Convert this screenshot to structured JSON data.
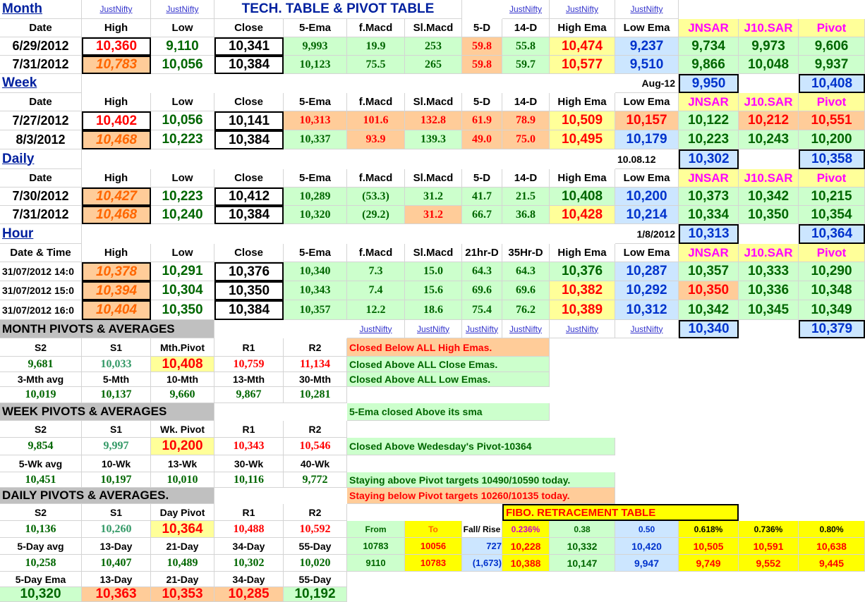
{
  "colors": {
    "green": "#ccffcc",
    "orange": "#ffcc99",
    "yellow": "#ffff99",
    "blue": "#cce6ff",
    "brightyellow": "#ffff00",
    "grey": "#c0c0c0",
    "purple": "#cc99ff",
    "red_text": "#ff0000",
    "green_text": "#006600",
    "blue_text": "#0033cc",
    "magenta_text": "#ff00ff",
    "orange_text": "#ff6600"
  },
  "title": "TECH. TABLE   &  PIVOT TABLE",
  "link_text": "JustNifty",
  "hdr": {
    "date": "Date",
    "high": "High",
    "low": "Low",
    "close": "Close",
    "ema5": "5-Ema",
    "fmacd": "f.Macd",
    "slmacd": "Sl.Macd",
    "d5": "5-D",
    "d14": "14-D",
    "hiema": "High Ema",
    "loema": "Low Ema",
    "jnsar": "JNSAR",
    "j10": "J10.SAR",
    "pivot": "Pivot",
    "datetime": "Date & Time",
    "hr21": "21hr-D",
    "hr35": "35Hr-D"
  },
  "sections": {
    "month": "Month",
    "week": "Week",
    "daily": "Daily",
    "hour": "Hour"
  },
  "month_rows": [
    [
      "6/29/2012",
      "10,360",
      "9,110",
      "10,341",
      "9,993",
      "19.9",
      "253",
      "59.8",
      "55.8",
      "10,474",
      "9,237",
      "9,734",
      "9,973",
      "9,606"
    ],
    [
      "7/31/2012",
      "10,783",
      "10,056",
      "10,384",
      "10,123",
      "75.5",
      "265",
      "59.8",
      "59.7",
      "10,577",
      "9,510",
      "9,866",
      "10,048",
      "9,937"
    ]
  ],
  "month_next": {
    "label": "Aug-12",
    "jnsar": "9,950",
    "pivot": "10,408"
  },
  "week_rows": [
    [
      "7/27/2012",
      "10,402",
      "10,056",
      "10,141",
      "10,313",
      "101.6",
      "132.8",
      "61.9",
      "78.9",
      "10,509",
      "10,157",
      "10,122",
      "10,212",
      "10,551"
    ],
    [
      "8/3/2012",
      "10,468",
      "10,223",
      "10,384",
      "10,337",
      "93.9",
      "139.3",
      "49.0",
      "75.0",
      "10,495",
      "10,179",
      "10,223",
      "10,243",
      "10,200"
    ]
  ],
  "week_next": {
    "label": "10.08.12",
    "jnsar": "10,302",
    "pivot": "10,358"
  },
  "daily_rows": [
    [
      "7/30/2012",
      "10,427",
      "10,223",
      "10,412",
      "10,289",
      "(53.3)",
      "31.2",
      "41.7",
      "21.5",
      "10,408",
      "10,200",
      "10,373",
      "10,342",
      "10,215"
    ],
    [
      "7/31/2012",
      "10,468",
      "10,240",
      "10,384",
      "10,320",
      "(29.2)",
      "31.2",
      "66.7",
      "36.8",
      "10,428",
      "10,214",
      "10,334",
      "10,350",
      "10,354"
    ]
  ],
  "daily_next": {
    "label": "1/8/2012",
    "jnsar": "10,313",
    "pivot": "10,364"
  },
  "hour_rows": [
    [
      "31/07/2012 14:0",
      "10,378",
      "10,291",
      "10,376",
      "10,340",
      "7.3",
      "15.0",
      "64.3",
      "64.3",
      "10,376",
      "10,287",
      "10,357",
      "10,333",
      "10,290"
    ],
    [
      "31/07/2012 15:0",
      "10,394",
      "10,304",
      "10,350",
      "10,343",
      "7.4",
      "15.6",
      "69.6",
      "69.6",
      "10,382",
      "10,292",
      "10,350",
      "10,336",
      "10,348"
    ],
    [
      "31/07/2012 16:0",
      "10,404",
      "10,350",
      "10,384",
      "10,357",
      "12.2",
      "18.6",
      "75.4",
      "76.2",
      "10,389",
      "10,312",
      "10,342",
      "10,345",
      "10,349"
    ]
  ],
  "hour_next": {
    "jnsar": "10,340",
    "pivot": "10,379"
  },
  "month_pivots": {
    "title": "MONTH PIVOTS  &  AVERAGES",
    "head": [
      "S2",
      "S1",
      "Mth.Pivot",
      "R1",
      "R2"
    ],
    "vals": [
      "9,681",
      "10,033",
      "10,408",
      "10,759",
      "11,134"
    ],
    "avg_head": [
      "3-Mth avg",
      "5-Mth",
      "10-Mth",
      "13-Mth",
      "30-Mth"
    ],
    "avg_vals": [
      "10,019",
      "10,137",
      "9,660",
      "9,867",
      "10,281"
    ]
  },
  "week_pivots": {
    "title": "WEEK  PIVOTS  &  AVERAGES",
    "head": [
      "S2",
      "S1",
      "Wk. Pivot",
      "R1",
      "R2"
    ],
    "vals": [
      "9,854",
      "9,997",
      "10,200",
      "10,343",
      "10,546"
    ],
    "avg_head": [
      "5-Wk avg",
      "10-Wk",
      "13-Wk",
      "30-Wk",
      "40-Wk"
    ],
    "avg_vals": [
      "10,451",
      "10,197",
      "10,010",
      "10,116",
      "9,772"
    ]
  },
  "daily_pivots": {
    "title": "DAILY  PIVOTS  &  AVERAGES.",
    "head": [
      "S2",
      "S1",
      "Day  Pivot",
      "R1",
      "R2"
    ],
    "vals": [
      "10,136",
      "10,260",
      "10,364",
      "10,488",
      "10,592"
    ],
    "avg_head": [
      "5-Day avg",
      "13-Day",
      "21-Day",
      "34-Day",
      "55-Day"
    ],
    "avg_vals": [
      "10,258",
      "10,407",
      "10,489",
      "10,302",
      "10,020"
    ],
    "ema_head": [
      "5-Day Ema",
      "13-Day",
      "21-Day",
      "34-Day",
      "55-Day"
    ],
    "ema_vals": [
      "10,320",
      "10,363",
      "10,353",
      "10,285",
      "10,192"
    ]
  },
  "notes": [
    "Closed Below ALL High Emas.",
    "Closed Above ALL Close Emas.",
    "Closed Above ALL Low Emas.",
    "5-Ema closed Above its sma",
    "Closed Above Wedesday's Pivot-10364",
    "Staying above Pivot targets 10490/10590 today.",
    "Staying below Pivot targets 10260/10135 today."
  ],
  "fibo": {
    "title": "FIBO. RETRACEMENT TABLE",
    "head": [
      "From",
      "To",
      "Fall/ Rise",
      "0.236%",
      "0.38",
      "0.50",
      "0.618%",
      "0.736%",
      "0.80%"
    ],
    "rows": [
      [
        "10783",
        "10056",
        "727",
        "10,228",
        "10,332",
        "10,420",
        "10,505",
        "10,591",
        "10,638"
      ],
      [
        "9110",
        "10783",
        "(1,673)",
        "10,388",
        "10,147",
        "9,947",
        "9,749",
        "9,552",
        "9,445"
      ]
    ]
  }
}
